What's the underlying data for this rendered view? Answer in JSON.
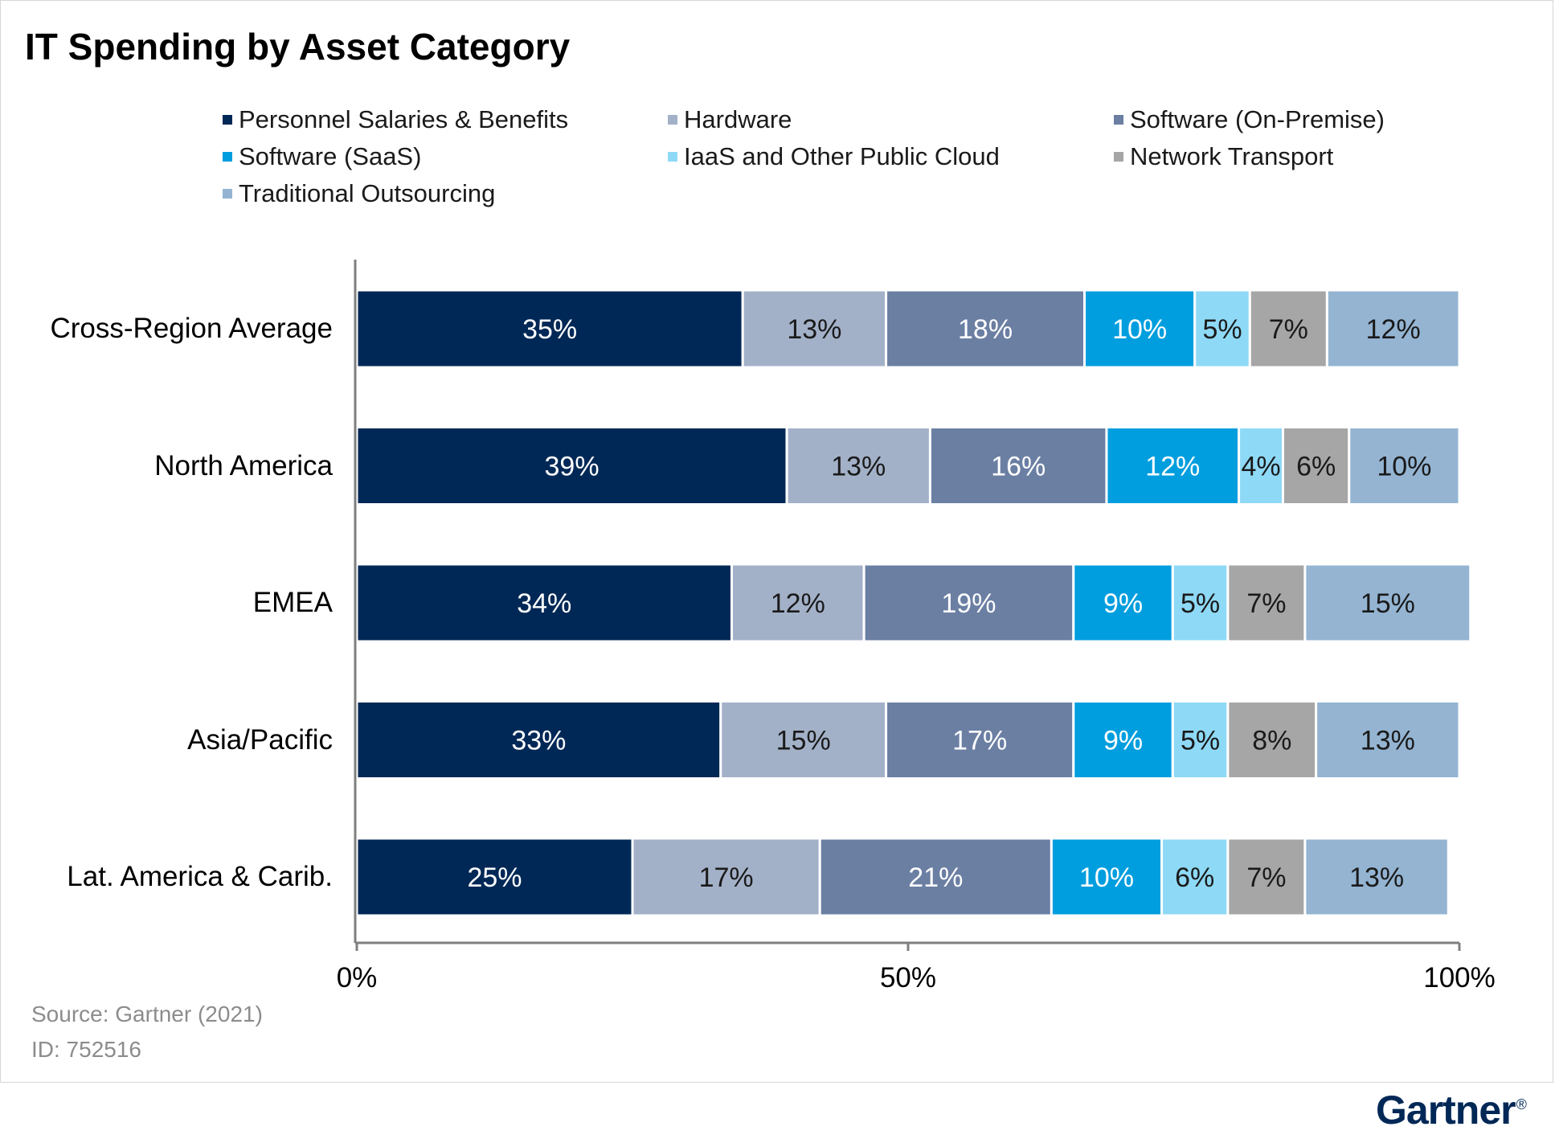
{
  "chart_data": {
    "type": "bar",
    "orientation": "horizontal",
    "stacked": true,
    "title": "IT Spending by Asset Category",
    "categories": [
      "Cross-Region Average",
      "North America",
      "EMEA",
      "Asia/Pacific",
      "Lat. America & Carib."
    ],
    "series": [
      {
        "name": "Personnel Salaries & Benefits",
        "color": "#002856",
        "values": [
          35,
          39,
          34,
          33,
          25
        ],
        "labels": [
          "35%",
          "39%",
          "34%",
          "33%",
          "25%"
        ],
        "label_color": "#ffffff"
      },
      {
        "name": "Hardware",
        "color": "#a3b1c8",
        "values": [
          13,
          13,
          12,
          15,
          17
        ],
        "labels": [
          "13%",
          "13%",
          "12%",
          "15%",
          "17%"
        ],
        "label_color": "#1a1a1a"
      },
      {
        "name": "Software (On-Premise)",
        "color": "#6b7fa3",
        "values": [
          18,
          16,
          19,
          17,
          21
        ],
        "labels": [
          "18%",
          "16%",
          "19%",
          "17%",
          "21%"
        ],
        "label_color": "#ffffff"
      },
      {
        "name": "Software (SaaS)",
        "color": "#009ede",
        "values": [
          10,
          12,
          9,
          9,
          10
        ],
        "labels": [
          "10%",
          "12%",
          "9%",
          "9%",
          "10%"
        ],
        "label_color": "#ffffff"
      },
      {
        "name": "IaaS and Other Public Cloud",
        "color": "#8ed9f6",
        "values": [
          5,
          4,
          5,
          5,
          6
        ],
        "labels": [
          "5%",
          "4%",
          "5%",
          "5%",
          "6%"
        ],
        "label_color": "#1a1a1a"
      },
      {
        "name": "Network Transport",
        "color": "#a6a6a6",
        "values": [
          7,
          6,
          7,
          8,
          7
        ],
        "labels": [
          "7%",
          "6%",
          "7%",
          "8%",
          "7%"
        ],
        "label_color": "#1a1a1a"
      },
      {
        "name": "Traditional Outsourcing",
        "color": "#94b4d2",
        "values": [
          12,
          10,
          15,
          13,
          13
        ],
        "labels": [
          "12%",
          "10%",
          "15%",
          "13%",
          "13%"
        ],
        "label_color": "#1a1a1a"
      }
    ],
    "xlim": [
      0,
      100
    ],
    "x_ticks": [
      0,
      50,
      100
    ],
    "x_tick_labels": [
      "0%",
      "50%",
      "100%"
    ],
    "xlabel": "",
    "ylabel": "",
    "grid": false,
    "legend_position": "top"
  },
  "footer": {
    "source": "Source: Gartner (2021)",
    "id": "ID: 752516"
  },
  "brand": {
    "logo_text": "Gartner",
    "logo_mark": "®",
    "color": "#002856"
  }
}
